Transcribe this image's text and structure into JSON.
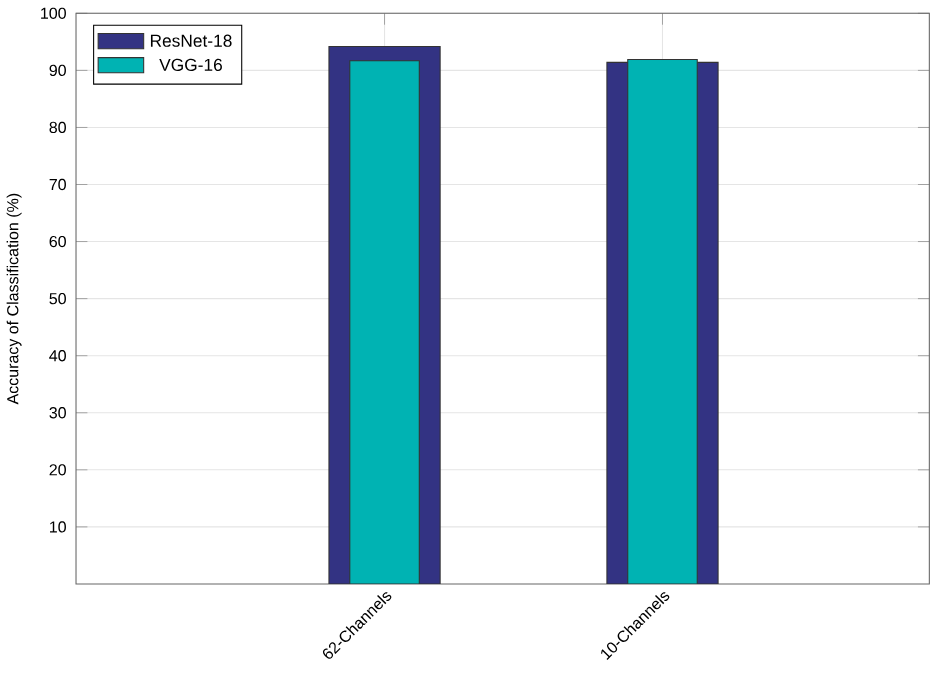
{
  "chart_data": {
    "type": "bar",
    "ylabel": "Accuracy of Classification (%)",
    "categories": [
      "62-Channels",
      "10-Channels"
    ],
    "series": [
      {
        "name": "ResNet-18",
        "color": "#333383",
        "values": [
          94.2,
          91.4
        ]
      },
      {
        "name": "VGG-16",
        "color": "#00b3b3",
        "values": [
          91.7,
          91.9
        ]
      }
    ],
    "ylim": [
      0,
      100
    ],
    "yticks": [
      10,
      20,
      30,
      40,
      50,
      60,
      70,
      80,
      90,
      100
    ],
    "grid": true,
    "legend": "top left"
  }
}
